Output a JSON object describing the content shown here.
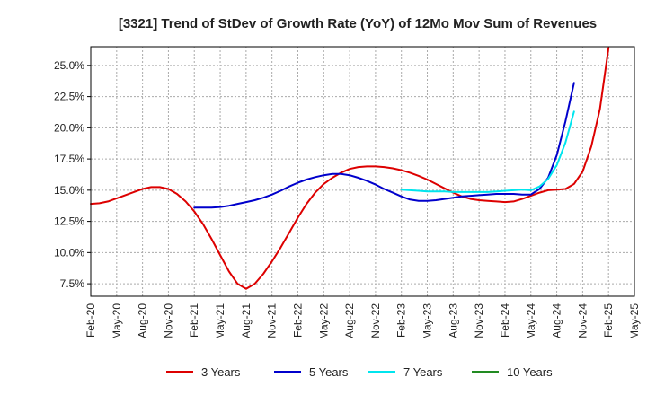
{
  "chart_data": {
    "type": "line",
    "title": "[3321]  Trend of StDev of Growth Rate (YoY) of 12Mo Mov Sum of Revenues",
    "xlabel": "",
    "ylabel": "",
    "x_ticks": [
      "Feb-20",
      "May-20",
      "Aug-20",
      "Nov-20",
      "Feb-21",
      "May-21",
      "Aug-21",
      "Nov-21",
      "Feb-22",
      "May-22",
      "Aug-22",
      "Nov-22",
      "Feb-23",
      "May-23",
      "Aug-23",
      "Nov-23",
      "Feb-24",
      "May-24",
      "Aug-24",
      "Nov-24",
      "Feb-25",
      "May-25"
    ],
    "y_ticks": [
      "7.5%",
      "10.0%",
      "12.5%",
      "15.0%",
      "17.5%",
      "20.0%",
      "22.5%",
      "25.0%"
    ],
    "y_tick_values": [
      7.5,
      10.0,
      12.5,
      15.0,
      17.5,
      20.0,
      22.5,
      25.0
    ],
    "ylim": [
      6.5,
      26.5
    ],
    "x_range_months": [
      0,
      63
    ],
    "grid": true,
    "legend_position": "bottom",
    "series": [
      {
        "name": "3 Years",
        "color": "#dd0000",
        "points": [
          [
            0,
            13.9
          ],
          [
            1,
            13.95
          ],
          [
            2,
            14.1
          ],
          [
            3,
            14.35
          ],
          [
            4,
            14.6
          ],
          [
            5,
            14.85
          ],
          [
            6,
            15.1
          ],
          [
            7,
            15.25
          ],
          [
            8,
            15.25
          ],
          [
            9,
            15.1
          ],
          [
            10,
            14.7
          ],
          [
            11,
            14.1
          ],
          [
            12,
            13.3
          ],
          [
            13,
            12.3
          ],
          [
            14,
            11.1
          ],
          [
            15,
            9.8
          ],
          [
            16,
            8.5
          ],
          [
            17,
            7.5
          ],
          [
            18,
            7.1
          ],
          [
            19,
            7.5
          ],
          [
            20,
            8.3
          ],
          [
            21,
            9.3
          ],
          [
            22,
            10.4
          ],
          [
            23,
            11.6
          ],
          [
            24,
            12.8
          ],
          [
            25,
            13.9
          ],
          [
            26,
            14.8
          ],
          [
            27,
            15.5
          ],
          [
            28,
            16.0
          ],
          [
            29,
            16.4
          ],
          [
            30,
            16.7
          ],
          [
            31,
            16.85
          ],
          [
            32,
            16.9
          ],
          [
            33,
            16.9
          ],
          [
            34,
            16.85
          ],
          [
            35,
            16.75
          ],
          [
            36,
            16.6
          ],
          [
            37,
            16.4
          ],
          [
            38,
            16.15
          ],
          [
            39,
            15.85
          ],
          [
            40,
            15.5
          ],
          [
            41,
            15.15
          ],
          [
            42,
            14.8
          ],
          [
            43,
            14.5
          ],
          [
            44,
            14.3
          ],
          [
            45,
            14.2
          ],
          [
            46,
            14.15
          ],
          [
            47,
            14.1
          ],
          [
            48,
            14.05
          ],
          [
            49,
            14.1
          ],
          [
            50,
            14.3
          ],
          [
            51,
            14.55
          ],
          [
            52,
            14.8
          ],
          [
            53,
            15.0
          ],
          [
            54,
            15.05
          ],
          [
            55,
            15.1
          ],
          [
            56,
            15.5
          ],
          [
            57,
            16.5
          ],
          [
            58,
            18.5
          ],
          [
            59,
            21.5
          ],
          [
            60,
            26.4
          ]
        ]
      },
      {
        "name": "5 Years",
        "color": "#0000cc",
        "points": [
          [
            12,
            13.6
          ],
          [
            13,
            13.6
          ],
          [
            14,
            13.6
          ],
          [
            15,
            13.65
          ],
          [
            16,
            13.75
          ],
          [
            17,
            13.9
          ],
          [
            18,
            14.05
          ],
          [
            19,
            14.2
          ],
          [
            20,
            14.4
          ],
          [
            21,
            14.65
          ],
          [
            22,
            14.95
          ],
          [
            23,
            15.3
          ],
          [
            24,
            15.6
          ],
          [
            25,
            15.85
          ],
          [
            26,
            16.05
          ],
          [
            27,
            16.2
          ],
          [
            28,
            16.3
          ],
          [
            29,
            16.3
          ],
          [
            30,
            16.2
          ],
          [
            31,
            16.0
          ],
          [
            32,
            15.75
          ],
          [
            33,
            15.45
          ],
          [
            34,
            15.1
          ],
          [
            35,
            14.8
          ],
          [
            36,
            14.5
          ],
          [
            37,
            14.25
          ],
          [
            38,
            14.15
          ],
          [
            39,
            14.15
          ],
          [
            40,
            14.2
          ],
          [
            41,
            14.3
          ],
          [
            42,
            14.4
          ],
          [
            43,
            14.5
          ],
          [
            44,
            14.55
          ],
          [
            45,
            14.6
          ],
          [
            46,
            14.65
          ],
          [
            47,
            14.7
          ],
          [
            48,
            14.7
          ],
          [
            49,
            14.7
          ],
          [
            50,
            14.65
          ],
          [
            51,
            14.65
          ],
          [
            52,
            15.1
          ],
          [
            53,
            16.0
          ],
          [
            54,
            17.8
          ],
          [
            55,
            20.5
          ],
          [
            56,
            23.6
          ]
        ]
      },
      {
        "name": "7 Years",
        "color": "#00e5ee",
        "points": [
          [
            36,
            15.05
          ],
          [
            37,
            15.0
          ],
          [
            38,
            14.95
          ],
          [
            39,
            14.9
          ],
          [
            40,
            14.9
          ],
          [
            41,
            14.9
          ],
          [
            42,
            14.85
          ],
          [
            43,
            14.85
          ],
          [
            44,
            14.85
          ],
          [
            45,
            14.85
          ],
          [
            46,
            14.85
          ],
          [
            47,
            14.9
          ],
          [
            48,
            14.95
          ],
          [
            49,
            15.0
          ],
          [
            50,
            15.05
          ],
          [
            51,
            15.0
          ],
          [
            52,
            15.3
          ],
          [
            53,
            15.9
          ],
          [
            54,
            17.0
          ],
          [
            55,
            18.8
          ],
          [
            56,
            21.3
          ]
        ]
      },
      {
        "name": "10 Years",
        "color": "#228b22",
        "points": []
      }
    ]
  }
}
